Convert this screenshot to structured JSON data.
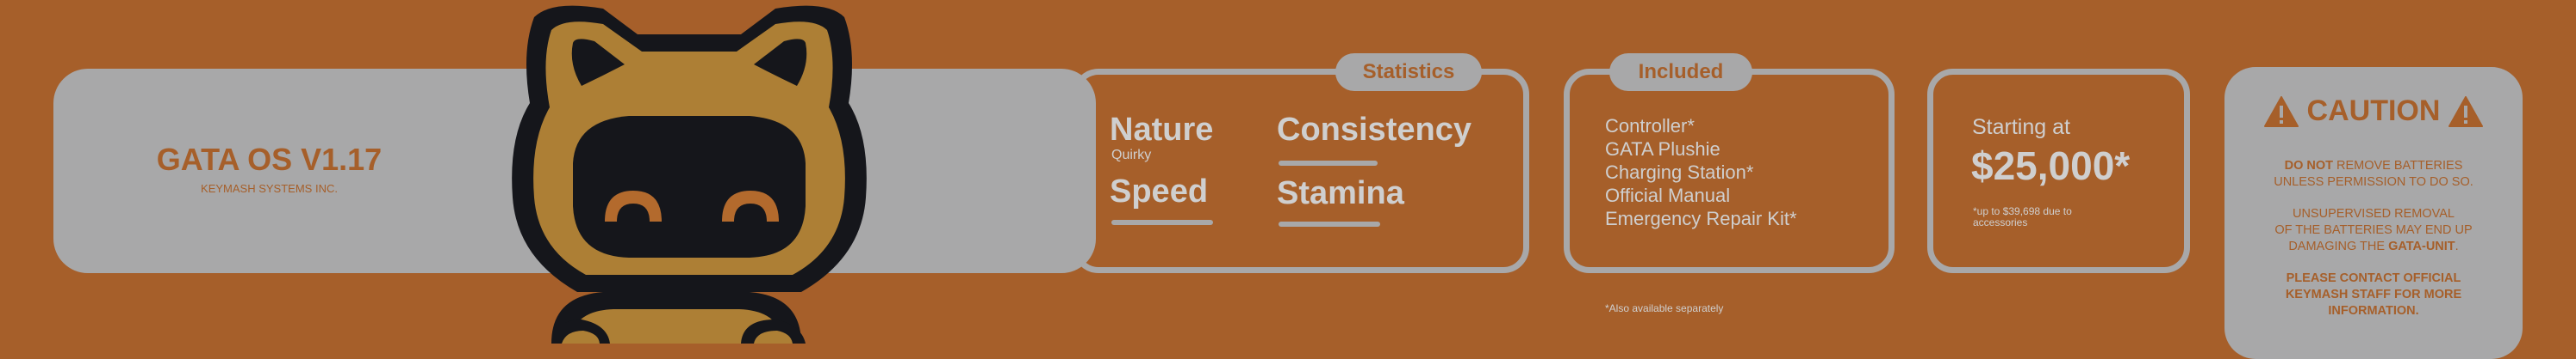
{
  "brand": {
    "title": "GATA OS V1.17",
    "subtitle": "KEYMASH SYSTEMS INC."
  },
  "mascot": {
    "icon": "cat-robot-mascot-icon"
  },
  "statistics": {
    "title": "Statistics",
    "nature_label": "Nature",
    "nature_value": "Quirky",
    "consistency_label": "Consistency",
    "speed_label": "Speed",
    "stamina_label": "Stamina"
  },
  "included": {
    "title": "Included",
    "items": [
      "Controller*",
      "GATA Plushie",
      "Charging Station*",
      "Official Manual",
      "Emergency Repair Kit*"
    ],
    "footnote": "*Also available separately"
  },
  "pricing": {
    "label": "Starting at",
    "price": "$25,000*",
    "footnote_line1": "*up to $39,698 due to",
    "footnote_line2": "accessories"
  },
  "caution": {
    "title": "CAUTION",
    "icon": "warning-triangle-icon",
    "p1_bold": "DO NOT",
    "p1_rest": " REMOVE BATTERIES",
    "p1_line2": "UNLESS PERMISSION TO DO SO.",
    "p2_line1": "UNSUPERVISED REMOVAL",
    "p2_line2": "OF THE BATTERIES MAY END UP",
    "p2_line3_pre": "DAMAGING THE ",
    "p2_line3_bold": "GATA-UNIT",
    "p2_line3_post": ".",
    "p3_line1": "PLEASE CONTACT OFFICIAL",
    "p3_line2": "KEYMASH STAFF FOR MORE",
    "p3_line3": "INFORMATION."
  },
  "colors": {
    "background": "#a65f2a",
    "panel": "#a8a8a9",
    "mascot_dark": "#15161b",
    "mascot_gold": "#ad7f35"
  }
}
